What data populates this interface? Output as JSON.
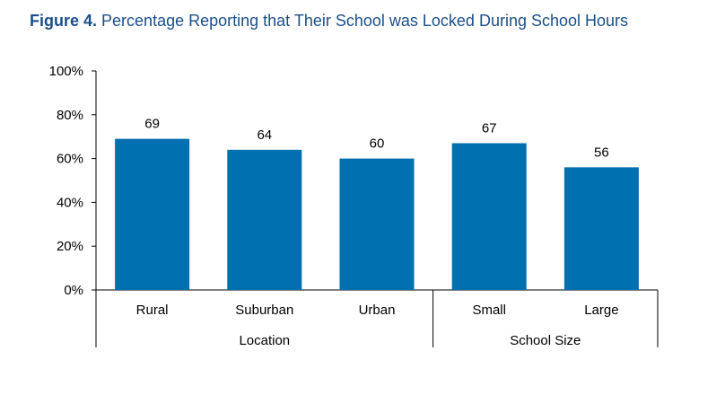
{
  "figure": {
    "label": "Figure 4.",
    "title": "Percentage Reporting that Their School was Locked During School Hours"
  },
  "chart_data": {
    "type": "bar",
    "categories": [
      "Rural",
      "Suburban",
      "Urban",
      "Small",
      "Large"
    ],
    "values": [
      69,
      64,
      60,
      67,
      56
    ],
    "data_labels": [
      "69",
      "64",
      "60",
      "67",
      "56"
    ],
    "groups": [
      {
        "label": "Location",
        "categories": [
          "Rural",
          "Suburban",
          "Urban"
        ]
      },
      {
        "label": "School Size",
        "categories": [
          "Small",
          "Large"
        ]
      }
    ],
    "ylim": [
      0,
      100
    ],
    "yticks": [
      0,
      20,
      40,
      60,
      80,
      100
    ],
    "ytick_labels": [
      "0%",
      "20%",
      "40%",
      "60%",
      "80%",
      "100%"
    ],
    "bar_color": "#0070b0",
    "title_color": "#1a4f8b",
    "grid": false,
    "legend": "none"
  }
}
